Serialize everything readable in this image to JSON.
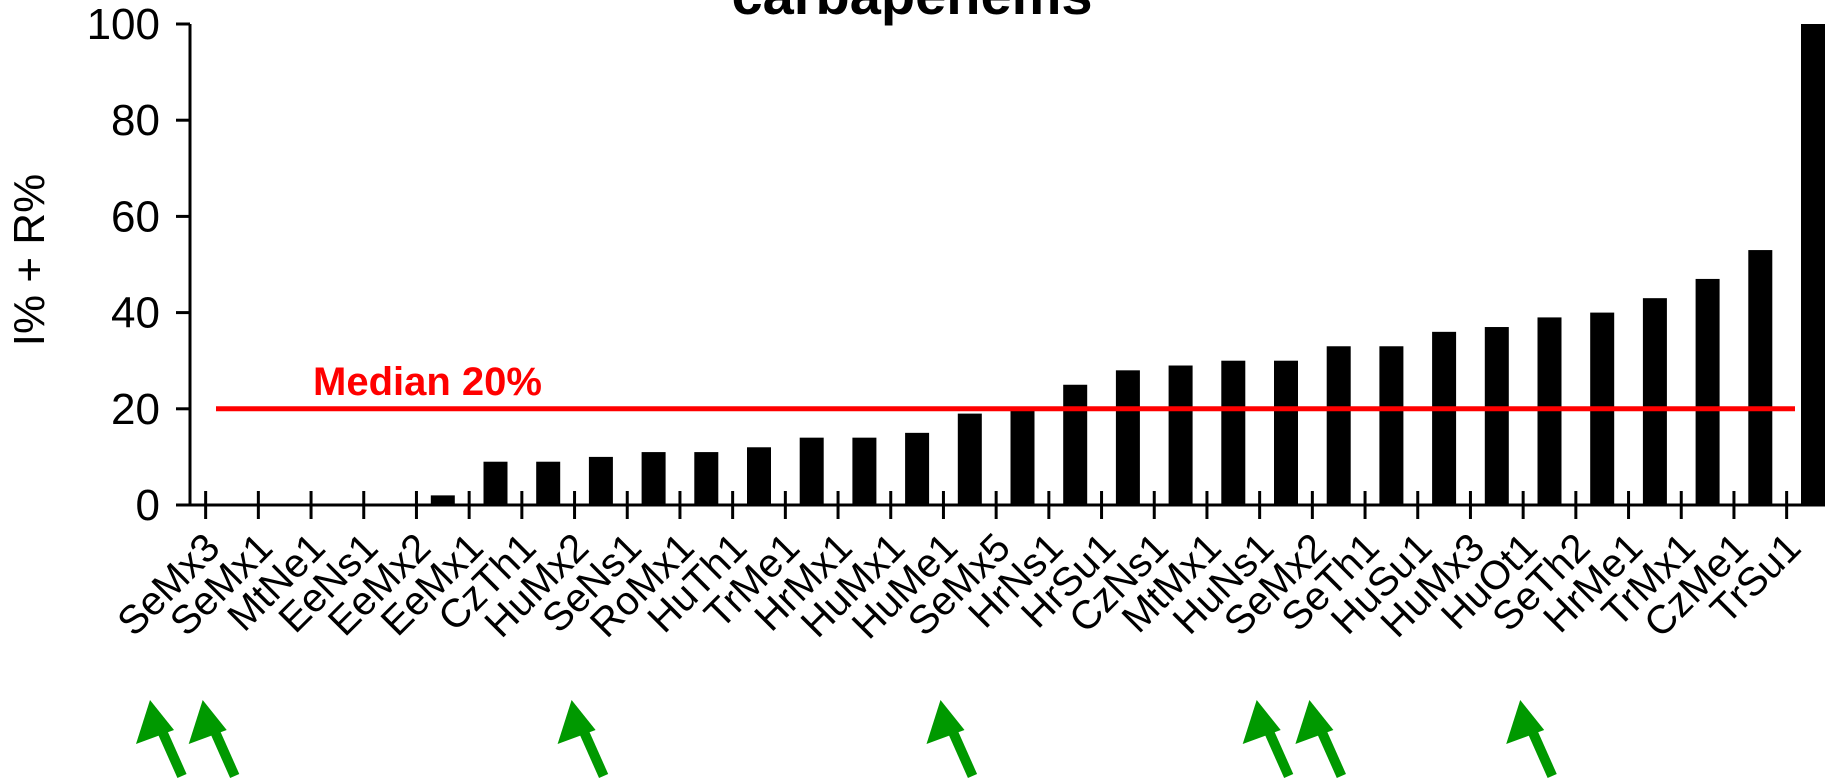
{
  "chart_data": {
    "type": "bar",
    "title": "carbapenems",
    "ylabel": "I% + R%",
    "xlabel": "",
    "ylim": [
      0,
      100
    ],
    "yticks": [
      0,
      20,
      40,
      60,
      80,
      100
    ],
    "grid": false,
    "categories": [
      "SeMx3",
      "SeMx1",
      "MtNe1",
      "EeNs1",
      "EeMx2",
      "EeMx1",
      "CzTh1",
      "HuMx2",
      "SeNs1",
      "RoMx1",
      "HuTh1",
      "TrMe1",
      "HrMx1",
      "HuMx1",
      "HuMe1",
      "SeMx5",
      "HrNs1",
      "HrSu1",
      "CzNs1",
      "MtMx1",
      "HuNs1",
      "SeMx2",
      "SeTh1",
      "HuSu1",
      "HuMx3",
      "HuOt1",
      "SeTh2",
      "HrMe1",
      "TrMx1",
      "CzMe1",
      "TrSu1"
    ],
    "values": [
      0,
      0,
      0,
      0,
      2,
      9,
      9,
      10,
      11,
      11,
      12,
      14,
      14,
      15,
      19,
      20,
      25,
      28,
      29,
      30,
      30,
      33,
      33,
      36,
      37,
      39,
      40,
      43,
      47,
      53,
      100
    ],
    "bar_color": "#000000",
    "median": {
      "value": 20,
      "label": "Median 20%",
      "color": "#ff0000"
    },
    "highlighted_categories": [
      "SeMx3",
      "SeMx1",
      "SeNs1",
      "SeMx5",
      "SeMx2",
      "SeTh1",
      "SeTh2"
    ],
    "arrow_color": "#009900"
  }
}
